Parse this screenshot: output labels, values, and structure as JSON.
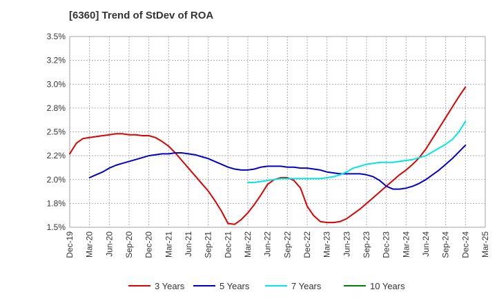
{
  "chart_data": {
    "type": "line",
    "title": "[6360]  Trend of StDev of ROA",
    "xlabel": "",
    "ylabel": "",
    "x_ticks": [
      "Dec-19",
      "Mar-20",
      "Jun-20",
      "Sep-20",
      "Dec-20",
      "Mar-21",
      "Jun-21",
      "Sep-21",
      "Dec-21",
      "Mar-22",
      "Jun-22",
      "Sep-22",
      "Dec-22",
      "Mar-23",
      "Jun-23",
      "Sep-23",
      "Dec-23",
      "Mar-24",
      "Jun-24",
      "Sep-24",
      "Dec-24",
      "Mar-25"
    ],
    "y_ticks": [
      "1.5%",
      "1.8%",
      "2.0%",
      "2.2%",
      "2.5%",
      "2.8%",
      "3.0%",
      "3.2%",
      "3.5%"
    ],
    "ylim": [
      1.5,
      3.5
    ],
    "y_unit": "%",
    "grid": true,
    "legend_position": "bottom",
    "series": [
      {
        "name": "3 Years",
        "color": "#dd0000",
        "points": [
          [
            "Dec-19",
            2.27
          ],
          [
            "Jan-20",
            2.38
          ],
          [
            "Feb-20",
            2.43
          ],
          [
            "Mar-20",
            2.44
          ],
          [
            "Apr-20",
            2.45
          ],
          [
            "May-20",
            2.46
          ],
          [
            "Jun-20",
            2.47
          ],
          [
            "Jul-20",
            2.48
          ],
          [
            "Aug-20",
            2.48
          ],
          [
            "Sep-20",
            2.47
          ],
          [
            "Oct-20",
            2.47
          ],
          [
            "Nov-20",
            2.46
          ],
          [
            "Dec-20",
            2.46
          ],
          [
            "Jan-21",
            2.44
          ],
          [
            "Feb-21",
            2.4
          ],
          [
            "Mar-21",
            2.35
          ],
          [
            "Apr-21",
            2.28
          ],
          [
            "May-21",
            2.2
          ],
          [
            "Jun-21",
            2.12
          ],
          [
            "Jul-21",
            2.04
          ],
          [
            "Aug-21",
            1.96
          ],
          [
            "Sep-21",
            1.88
          ],
          [
            "Oct-21",
            1.78
          ],
          [
            "Nov-21",
            1.67
          ],
          [
            "Dec-21",
            1.54
          ],
          [
            "Jan-22",
            1.53
          ],
          [
            "Feb-22",
            1.58
          ],
          [
            "Mar-22",
            1.65
          ],
          [
            "Apr-22",
            1.74
          ],
          [
            "May-22",
            1.84
          ],
          [
            "Jun-22",
            1.95
          ],
          [
            "Jul-22",
            2.0
          ],
          [
            "Aug-22",
            2.02
          ],
          [
            "Sep-22",
            2.02
          ],
          [
            "Oct-22",
            1.99
          ],
          [
            "Nov-22",
            1.91
          ],
          [
            "Dec-22",
            1.72
          ],
          [
            "Jan-23",
            1.62
          ],
          [
            "Feb-23",
            1.56
          ],
          [
            "Mar-23",
            1.55
          ],
          [
            "Apr-23",
            1.55
          ],
          [
            "May-23",
            1.56
          ],
          [
            "Jun-23",
            1.59
          ],
          [
            "Jul-23",
            1.64
          ],
          [
            "Aug-23",
            1.69
          ],
          [
            "Sep-23",
            1.75
          ],
          [
            "Oct-23",
            1.81
          ],
          [
            "Nov-23",
            1.87
          ],
          [
            "Dec-23",
            1.93
          ],
          [
            "Jan-24",
            1.99
          ],
          [
            "Feb-24",
            2.05
          ],
          [
            "Mar-24",
            2.1
          ],
          [
            "Apr-24",
            2.16
          ],
          [
            "May-24",
            2.23
          ],
          [
            "Jun-24",
            2.32
          ],
          [
            "Jul-24",
            2.43
          ],
          [
            "Aug-24",
            2.54
          ],
          [
            "Sep-24",
            2.65
          ],
          [
            "Oct-24",
            2.76
          ],
          [
            "Nov-24",
            2.87
          ],
          [
            "Dec-24",
            2.97
          ]
        ]
      },
      {
        "name": "5 Years",
        "color": "#0000cc",
        "points": [
          [
            "Mar-20",
            2.02
          ],
          [
            "Apr-20",
            2.05
          ],
          [
            "May-20",
            2.08
          ],
          [
            "Jun-20",
            2.12
          ],
          [
            "Jul-20",
            2.15
          ],
          [
            "Aug-20",
            2.17
          ],
          [
            "Sep-20",
            2.19
          ],
          [
            "Oct-20",
            2.21
          ],
          [
            "Nov-20",
            2.23
          ],
          [
            "Dec-20",
            2.25
          ],
          [
            "Jan-21",
            2.26
          ],
          [
            "Feb-21",
            2.27
          ],
          [
            "Mar-21",
            2.27
          ],
          [
            "Apr-21",
            2.28
          ],
          [
            "May-21",
            2.28
          ],
          [
            "Jun-21",
            2.27
          ],
          [
            "Jul-21",
            2.26
          ],
          [
            "Aug-21",
            2.24
          ],
          [
            "Sep-21",
            2.22
          ],
          [
            "Oct-21",
            2.19
          ],
          [
            "Nov-21",
            2.16
          ],
          [
            "Dec-21",
            2.13
          ],
          [
            "Jan-22",
            2.11
          ],
          [
            "Feb-22",
            2.1
          ],
          [
            "Mar-22",
            2.1
          ],
          [
            "Apr-22",
            2.11
          ],
          [
            "May-22",
            2.13
          ],
          [
            "Jun-22",
            2.14
          ],
          [
            "Jul-22",
            2.14
          ],
          [
            "Aug-22",
            2.14
          ],
          [
            "Sep-22",
            2.13
          ],
          [
            "Oct-22",
            2.13
          ],
          [
            "Nov-22",
            2.12
          ],
          [
            "Dec-22",
            2.12
          ],
          [
            "Jan-23",
            2.11
          ],
          [
            "Feb-23",
            2.1
          ],
          [
            "Mar-23",
            2.08
          ],
          [
            "Apr-23",
            2.07
          ],
          [
            "May-23",
            2.06
          ],
          [
            "Jun-23",
            2.06
          ],
          [
            "Jul-23",
            2.06
          ],
          [
            "Aug-23",
            2.06
          ],
          [
            "Sep-23",
            2.05
          ],
          [
            "Oct-23",
            2.03
          ],
          [
            "Nov-23",
            1.99
          ],
          [
            "Dec-23",
            1.93
          ],
          [
            "Jan-24",
            1.9
          ],
          [
            "Feb-24",
            1.9
          ],
          [
            "Mar-24",
            1.91
          ],
          [
            "Apr-24",
            1.93
          ],
          [
            "May-24",
            1.96
          ],
          [
            "Jun-24",
            2.0
          ],
          [
            "Jul-24",
            2.05
          ],
          [
            "Aug-24",
            2.1
          ],
          [
            "Sep-24",
            2.16
          ],
          [
            "Oct-24",
            2.22
          ],
          [
            "Nov-24",
            2.29
          ],
          [
            "Dec-24",
            2.36
          ]
        ]
      },
      {
        "name": "7 Years",
        "color": "#00e5e5",
        "points": [
          [
            "Mar-22",
            1.97
          ],
          [
            "Apr-22",
            1.97
          ],
          [
            "May-22",
            1.98
          ],
          [
            "Jun-22",
            1.99
          ],
          [
            "Jul-22",
            2.0
          ],
          [
            "Aug-22",
            2.01
          ],
          [
            "Sep-22",
            2.01
          ],
          [
            "Oct-22",
            2.01
          ],
          [
            "Nov-22",
            2.01
          ],
          [
            "Dec-22",
            2.01
          ],
          [
            "Jan-23",
            2.01
          ],
          [
            "Feb-23",
            2.01
          ],
          [
            "Mar-23",
            2.02
          ],
          [
            "Apr-23",
            2.03
          ],
          [
            "May-23",
            2.05
          ],
          [
            "Jun-23",
            2.08
          ],
          [
            "Jul-23",
            2.12
          ],
          [
            "Aug-23",
            2.14
          ],
          [
            "Sep-23",
            2.16
          ],
          [
            "Oct-23",
            2.17
          ],
          [
            "Nov-23",
            2.18
          ],
          [
            "Dec-23",
            2.18
          ],
          [
            "Jan-24",
            2.18
          ],
          [
            "Feb-24",
            2.19
          ],
          [
            "Mar-24",
            2.2
          ],
          [
            "Apr-24",
            2.21
          ],
          [
            "May-24",
            2.23
          ],
          [
            "Jun-24",
            2.25
          ],
          [
            "Jul-24",
            2.29
          ],
          [
            "Aug-24",
            2.33
          ],
          [
            "Sep-24",
            2.37
          ],
          [
            "Oct-24",
            2.42
          ],
          [
            "Nov-24",
            2.5
          ],
          [
            "Dec-24",
            2.61
          ]
        ]
      },
      {
        "name": "10 Years",
        "color": "#008000",
        "points": []
      }
    ]
  }
}
